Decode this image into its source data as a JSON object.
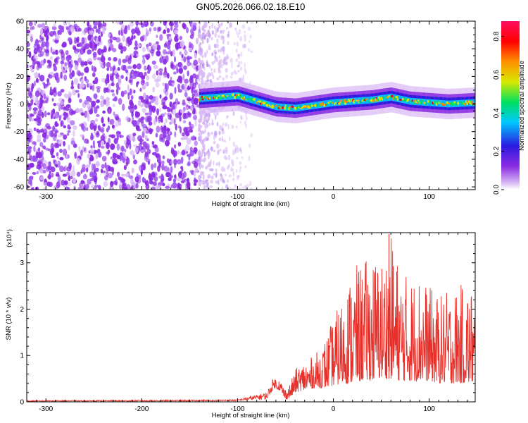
{
  "title": "GN05.2026.066.02.18.E10",
  "colors": {
    "snr_line": "#e8302a",
    "scatter_purple": "#7b2cf0",
    "colormap": [
      "#d8b8f4",
      "#8a2be2",
      "#2a1ae0",
      "#00c8ff",
      "#00e060",
      "#d8e800",
      "#ff9000",
      "#ff0000",
      "#ff1060"
    ]
  },
  "chart_data": [
    {
      "type": "heatmap",
      "name": "spectrogram",
      "xlabel": "Height of straight line (km)",
      "ylabel": "Frequency (Hz)",
      "xlim": [
        -320,
        148
      ],
      "ylim": [
        -62,
        60
      ],
      "x_ticks": [
        -300,
        -200,
        -100,
        0,
        100
      ],
      "x_tick_labels": [
        "-300",
        "-200",
        "-100",
        "0",
        "100"
      ],
      "y_ticks": [
        -60,
        -40,
        -20,
        0,
        20,
        40,
        60
      ],
      "y_tick_labels": [
        "-60",
        "-40",
        "-20",
        "0",
        "20",
        "40",
        "60"
      ],
      "noise_region_x": [
        -320,
        -140
      ],
      "faint_region_x": [
        -140,
        -85
      ],
      "signal_band": {
        "x": [
          -140,
          -120,
          -100,
          -80,
          -60,
          -40,
          -20,
          0,
          20,
          40,
          60,
          80,
          100,
          120,
          148
        ],
        "center_hz": [
          4,
          5,
          6,
          2,
          -2,
          -3,
          -1,
          1,
          2,
          3,
          5,
          2,
          1,
          0,
          1
        ],
        "half_width_hz": 5
      },
      "colorbar": {
        "label": "Normalized spectral amplitude",
        "ticks": [
          0.0,
          0.2,
          0.4,
          0.6,
          0.8
        ],
        "tick_labels": [
          "0.0",
          "0.2",
          "0.4",
          "0.6",
          "0.8"
        ],
        "range": [
          0,
          0.88
        ]
      }
    },
    {
      "type": "line",
      "name": "snr",
      "xlabel": "Height of straight line (km)",
      "ylabel": "SNR (10 * v/v)",
      "scale_label": "(x10⁴)",
      "xlim": [
        -320,
        148
      ],
      "ylim": [
        0,
        3.65
      ],
      "x_ticks": [
        -300,
        -200,
        -100,
        0,
        100
      ],
      "x_tick_labels": [
        "-300",
        "-200",
        "-100",
        "0",
        "100"
      ],
      "y_ticks": [
        0,
        1,
        2,
        3
      ],
      "y_tick_labels": [
        "0",
        "1",
        "2",
        "3"
      ],
      "envelope": {
        "x": [
          -320,
          -150,
          -100,
          -70,
          -62,
          -56,
          -50,
          -45,
          -40,
          -30,
          -20,
          -10,
          0,
          10,
          20,
          30,
          40,
          50,
          60,
          70,
          80,
          90,
          100,
          110,
          120,
          130,
          140,
          148
        ],
        "y": [
          0.03,
          0.04,
          0.05,
          0.2,
          0.55,
          0.5,
          0.3,
          0.4,
          0.7,
          0.9,
          1.0,
          1.3,
          1.8,
          2.3,
          2.9,
          3.0,
          3.2,
          3.1,
          3.6,
          2.9,
          2.7,
          2.8,
          2.5,
          2.3,
          2.4,
          2.5,
          2.6,
          2.4
        ]
      },
      "baseline": {
        "x": [
          -320,
          -150,
          -100,
          -70,
          -62,
          -56,
          -50,
          -45,
          -40,
          -30,
          -20,
          -10,
          0,
          10,
          20,
          30,
          40,
          50,
          60,
          70,
          80,
          90,
          100,
          110,
          120,
          130,
          140,
          148
        ],
        "y": [
          0.01,
          0.01,
          0.02,
          0.05,
          0.3,
          0.25,
          0.05,
          0.1,
          0.2,
          0.25,
          0.3,
          0.3,
          0.35,
          0.4,
          0.4,
          0.45,
          0.45,
          0.5,
          0.5,
          0.45,
          0.45,
          0.45,
          0.45,
          0.4,
          0.4,
          0.4,
          0.4,
          0.4
        ]
      },
      "peak": {
        "x": 58,
        "y": 3.62
      }
    }
  ]
}
